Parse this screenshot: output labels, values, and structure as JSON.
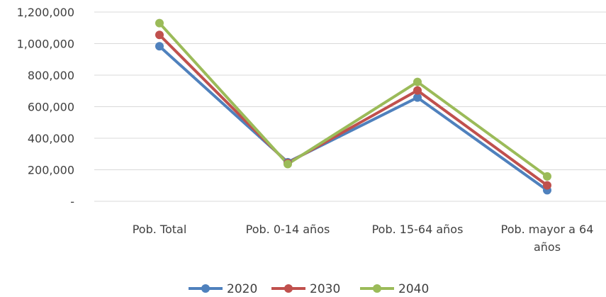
{
  "chart_data": {
    "type": "line",
    "categories": [
      [
        "Pob. Total"
      ],
      [
        "Pob. 0-14 años"
      ],
      [
        "Pob. 15-64 años"
      ],
      [
        "Pob. mayor a 64",
        "años"
      ]
    ],
    "series": [
      {
        "name": "2020",
        "color": "#4f81bd",
        "values": [
          983000,
          248000,
          658000,
          70000
        ]
      },
      {
        "name": "2030",
        "color": "#c0504d",
        "values": [
          1055000,
          242000,
          703000,
          101000
        ]
      },
      {
        "name": "2040",
        "color": "#9bbb59",
        "values": [
          1130000,
          236000,
          757000,
          158000
        ]
      }
    ],
    "ylim": [
      0,
      1200000
    ],
    "yticks": [
      {
        "value": 0,
        "label": "-"
      },
      {
        "value": 200000,
        "label": "200,000"
      },
      {
        "value": 400000,
        "label": "400,000"
      },
      {
        "value": 600000,
        "label": "600,000"
      },
      {
        "value": 800000,
        "label": "800,000"
      },
      {
        "value": 1000000,
        "label": "1,000,000"
      },
      {
        "value": 1200000,
        "label": "1,200,000"
      }
    ],
    "grid": true,
    "legend_position": "bottom"
  }
}
